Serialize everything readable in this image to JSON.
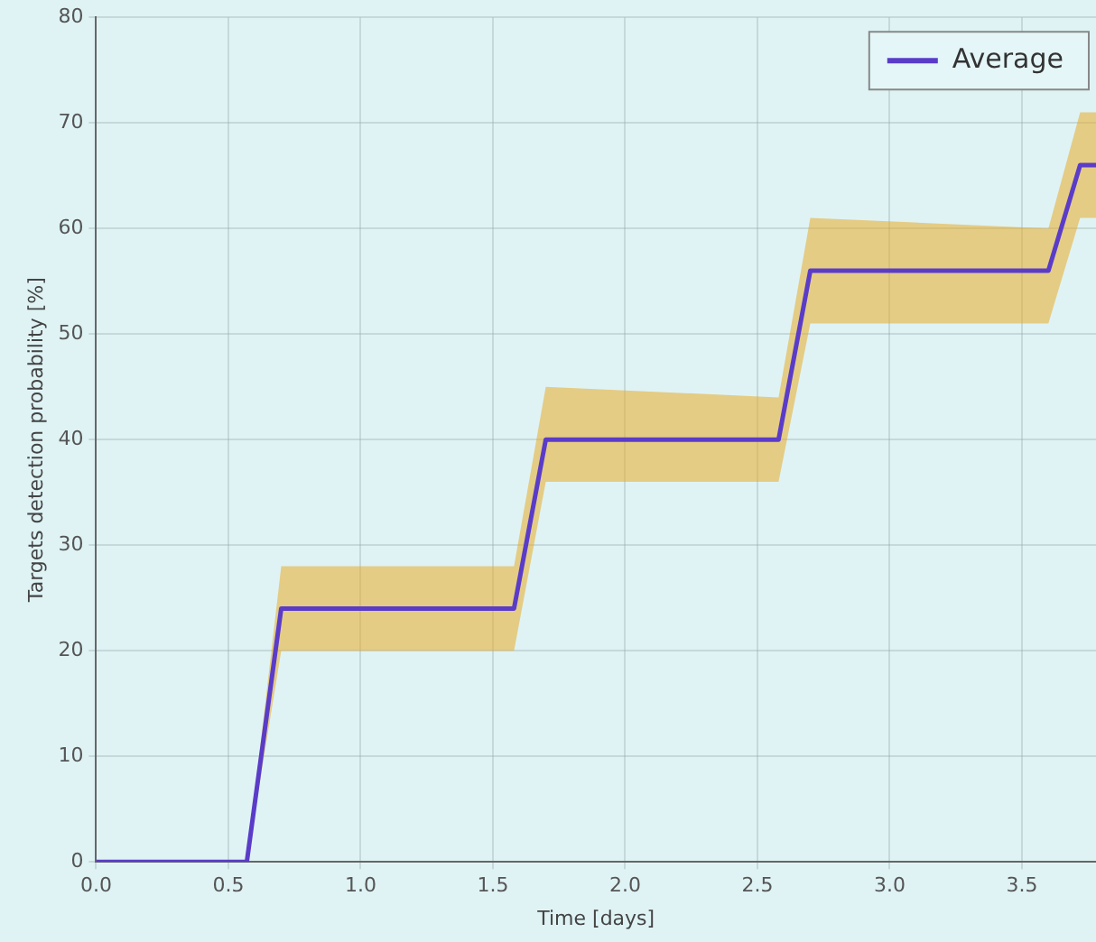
{
  "chart_data": {
    "type": "line",
    "xlabel": "Time [days]",
    "ylabel": "Targets detection probability [%]",
    "x": [
      0,
      0.57,
      0.7,
      1.58,
      1.7,
      2.58,
      2.7,
      3.6,
      3.72,
      3.78
    ],
    "series": [
      {
        "name": "Average",
        "color": "#5a3cc8",
        "values": [
          0,
          0,
          24,
          24,
          40,
          40,
          56,
          56,
          66,
          66
        ],
        "lower": [
          0,
          0,
          20,
          20,
          36,
          36,
          51,
          51,
          61,
          61
        ],
        "upper": [
          0,
          0,
          28,
          28,
          45,
          44,
          61,
          60,
          71,
          71
        ]
      }
    ],
    "xlim": [
      0,
      3.78
    ],
    "xticks": [
      {
        "value": 0,
        "label": "0.0"
      },
      {
        "value": 0.5,
        "label": "0.5"
      },
      {
        "value": 1,
        "label": "1.0"
      },
      {
        "value": 1.5,
        "label": "1.5"
      },
      {
        "value": 2,
        "label": "2.0"
      },
      {
        "value": 2.5,
        "label": "2.5"
      },
      {
        "value": 3,
        "label": "3.0"
      },
      {
        "value": 3.5,
        "label": "3.5"
      }
    ],
    "ylim": [
      0,
      80
    ],
    "yticks": [
      0,
      10,
      20,
      30,
      40,
      50,
      60,
      70,
      80
    ],
    "grid": true,
    "legend": "top right",
    "marker": "none",
    "line_style": "solid"
  }
}
